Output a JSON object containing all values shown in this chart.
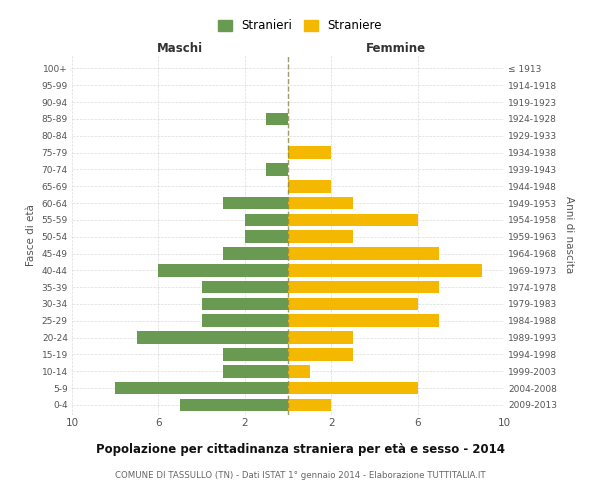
{
  "age_groups": [
    "0-4",
    "5-9",
    "10-14",
    "15-19",
    "20-24",
    "25-29",
    "30-34",
    "35-39",
    "40-44",
    "45-49",
    "50-54",
    "55-59",
    "60-64",
    "65-69",
    "70-74",
    "75-79",
    "80-84",
    "85-89",
    "90-94",
    "95-99",
    "100+"
  ],
  "birth_years": [
    "2009-2013",
    "2004-2008",
    "1999-2003",
    "1994-1998",
    "1989-1993",
    "1984-1988",
    "1979-1983",
    "1974-1978",
    "1969-1973",
    "1964-1968",
    "1959-1963",
    "1954-1958",
    "1949-1953",
    "1944-1948",
    "1939-1943",
    "1934-1938",
    "1929-1933",
    "1924-1928",
    "1919-1923",
    "1914-1918",
    "≤ 1913"
  ],
  "maschi": [
    5,
    8,
    3,
    3,
    7,
    4,
    4,
    4,
    6,
    3,
    2,
    2,
    3,
    0,
    1,
    0,
    0,
    1,
    0,
    0,
    0
  ],
  "femmine": [
    2,
    6,
    1,
    3,
    3,
    7,
    6,
    7,
    9,
    7,
    3,
    6,
    3,
    2,
    0,
    2,
    0,
    0,
    0,
    0,
    0
  ],
  "maschi_color": "#6a9a52",
  "femmine_color": "#f5b800",
  "center_line_color": "#8b8b4b",
  "title": "Popolazione per cittadinanza straniera per età e sesso - 2014",
  "subtitle": "COMUNE DI TASSULLO (TN) - Dati ISTAT 1° gennaio 2014 - Elaborazione TUTTITALIA.IT",
  "xlabel_left": "Maschi",
  "xlabel_right": "Femmine",
  "ylabel": "Fasce di età",
  "ylabel_right": "Anni di nascita",
  "legend_maschi": "Stranieri",
  "legend_femmine": "Straniere",
  "background_color": "#ffffff",
  "grid_color": "#cccccc",
  "bar_height": 0.75
}
